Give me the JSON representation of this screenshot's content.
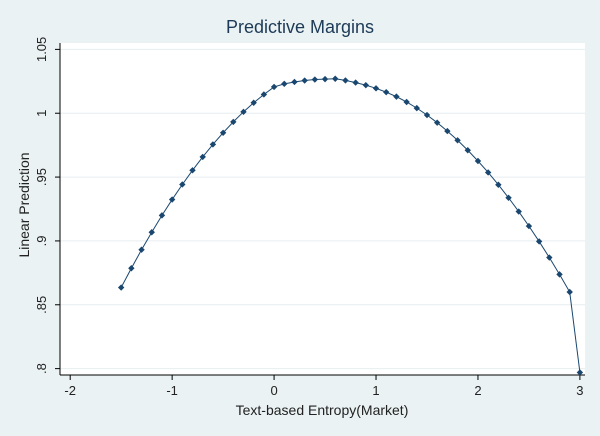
{
  "chart_data": {
    "type": "line",
    "title": "Predictive Margins",
    "xlabel": "Text-based Entropy(Market)",
    "ylabel": "Linear Prediction",
    "xlim": [
      -2.1,
      3.05
    ],
    "ylim": [
      0.795,
      1.055
    ],
    "x_ticks": [
      {
        "value": -2,
        "label": "-2"
      },
      {
        "value": -1,
        "label": "-1"
      },
      {
        "value": 0,
        "label": "0"
      },
      {
        "value": 1,
        "label": "1"
      },
      {
        "value": 2,
        "label": "2"
      },
      {
        "value": 3,
        "label": "3"
      }
    ],
    "y_ticks": [
      {
        "value": 0.8,
        "label": ".8"
      },
      {
        "value": 0.85,
        "label": ".85"
      },
      {
        "value": 0.9,
        "label": ".9"
      },
      {
        "value": 0.95,
        "label": ".95"
      },
      {
        "value": 1.0,
        "label": "1"
      },
      {
        "value": 1.05,
        "label": "1.05"
      }
    ],
    "grid": "horizontal",
    "legend": "none",
    "colors": {
      "page_background": "#eaf2f3",
      "plot_background": "#ffffff",
      "grid": "#e6eef0",
      "line": "#1a476f",
      "marker": "#1a476f",
      "title": "#1d3a57"
    },
    "series": [
      {
        "x": [
          -1.5,
          -1.4,
          -1.3,
          -1.2,
          -1.1,
          -1.0,
          -0.9,
          -0.8,
          -0.7,
          -0.6,
          -0.5,
          -0.4,
          -0.3,
          -0.2,
          -0.1,
          0.0,
          0.1,
          0.2,
          0.3,
          0.4,
          0.5,
          0.6,
          0.7,
          0.8,
          0.9,
          1.0,
          1.1,
          1.2,
          1.3,
          1.4,
          1.5,
          1.6,
          1.7,
          1.8,
          1.9,
          2.0,
          2.1,
          2.2,
          2.3,
          2.4,
          2.5,
          2.6,
          2.7,
          2.8,
          2.9,
          3.0
        ],
        "y": [
          0.8635,
          0.8786,
          0.8931,
          0.9068,
          0.92,
          0.9324,
          0.9442,
          0.9553,
          0.9658,
          0.9756,
          0.9847,
          0.9932,
          1.0011,
          1.0082,
          1.0147,
          1.0206,
          1.023,
          1.0245,
          1.0256,
          1.0264,
          1.0267,
          1.027,
          1.0257,
          1.024,
          1.022,
          1.0195,
          1.0165,
          1.013,
          1.0088,
          1.004,
          0.9986,
          0.9926,
          0.986,
          0.9788,
          0.971,
          0.9626,
          0.9536,
          0.944,
          0.9338,
          0.923,
          0.9116,
          0.8996,
          0.887,
          0.8738,
          0.86,
          0.797
        ]
      }
    ]
  }
}
